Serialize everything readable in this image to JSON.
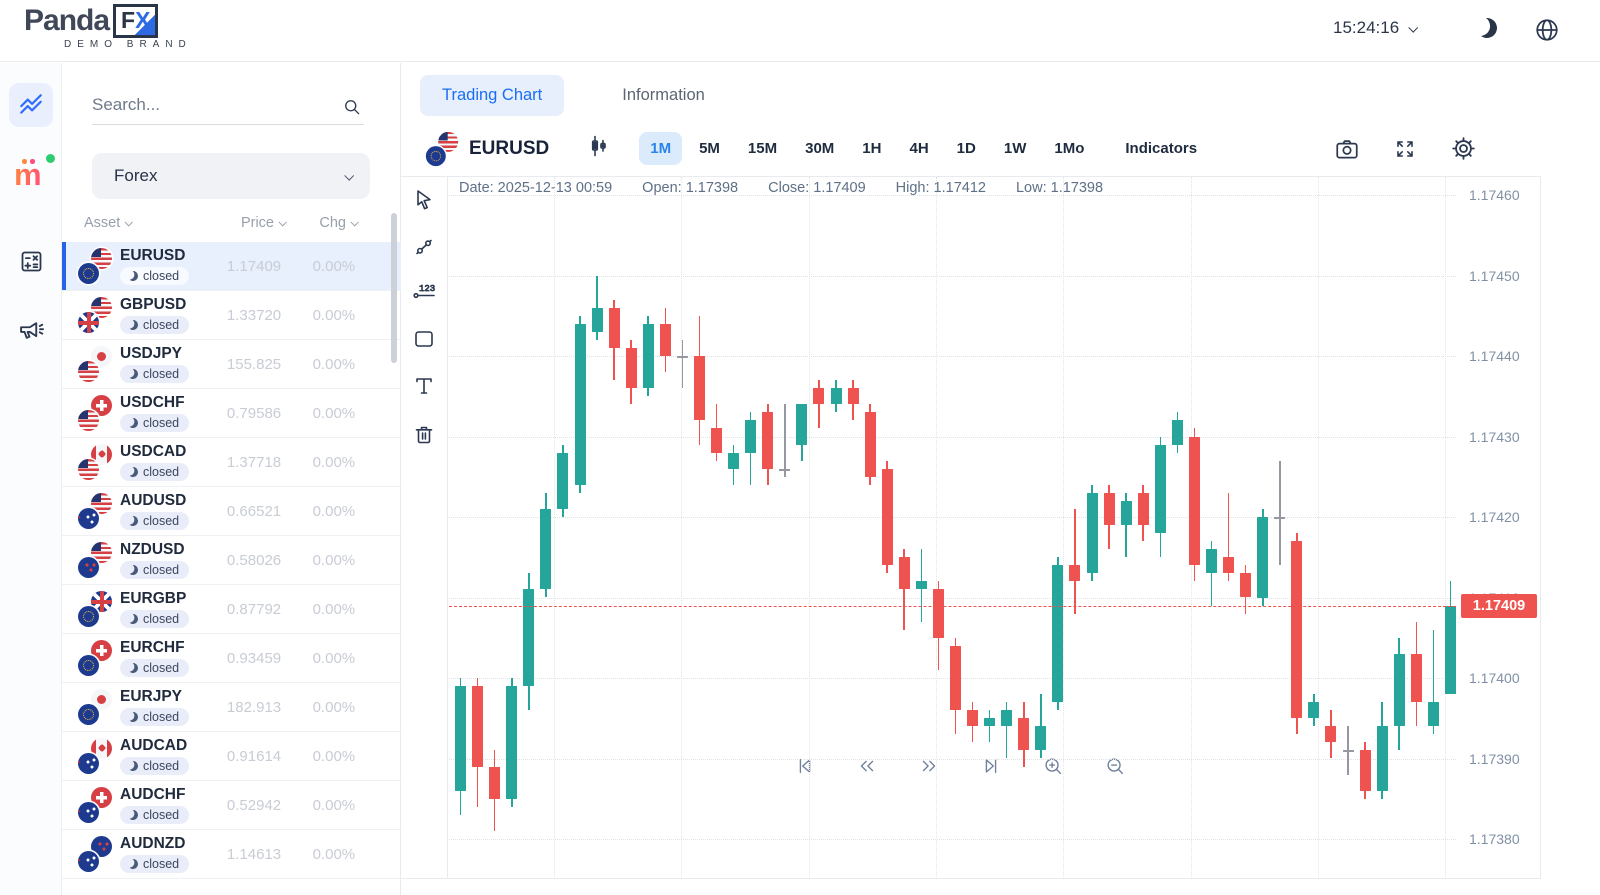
{
  "header": {
    "logo_main": "Panda",
    "logo_fx_f": "F",
    "logo_fx_x": "X",
    "logo_sub": "DEMO BRAND",
    "clock": "15:24:16",
    "icons": [
      "clock-dropdown-chevron",
      "moon-icon",
      "globe-icon"
    ]
  },
  "rail": {
    "items": [
      "markets-icon",
      "m-app-icon",
      "calculator-icon",
      "announcements-icon"
    ]
  },
  "watchlist": {
    "search_placeholder": "Search...",
    "search_icon": "search-icon",
    "category": "Forex",
    "columns": [
      "Asset",
      "Price",
      "Chg"
    ],
    "status_label": "closed",
    "rows": [
      {
        "symbol": "EURUSD",
        "base": "eur",
        "quote": "usd",
        "price": "1.17409",
        "chg": "0.00%",
        "status": "closed",
        "selected": true
      },
      {
        "symbol": "GBPUSD",
        "base": "gbp",
        "quote": "usd",
        "price": "1.33720",
        "chg": "0.00%",
        "status": "closed",
        "selected": false
      },
      {
        "symbol": "USDJPY",
        "base": "usd",
        "quote": "jpy",
        "price": "155.825",
        "chg": "0.00%",
        "status": "closed",
        "selected": false
      },
      {
        "symbol": "USDCHF",
        "base": "usd",
        "quote": "chf",
        "price": "0.79586",
        "chg": "0.00%",
        "status": "closed",
        "selected": false
      },
      {
        "symbol": "USDCAD",
        "base": "usd",
        "quote": "cad",
        "price": "1.37718",
        "chg": "0.00%",
        "status": "closed",
        "selected": false
      },
      {
        "symbol": "AUDUSD",
        "base": "aud",
        "quote": "usd",
        "price": "0.66521",
        "chg": "0.00%",
        "status": "closed",
        "selected": false
      },
      {
        "symbol": "NZDUSD",
        "base": "nzd",
        "quote": "usd",
        "price": "0.58026",
        "chg": "0.00%",
        "status": "closed",
        "selected": false
      },
      {
        "symbol": "EURGBP",
        "base": "eur",
        "quote": "gbp",
        "price": "0.87792",
        "chg": "0.00%",
        "status": "closed",
        "selected": false
      },
      {
        "symbol": "EURCHF",
        "base": "eur",
        "quote": "chf",
        "price": "0.93459",
        "chg": "0.00%",
        "status": "closed",
        "selected": false
      },
      {
        "symbol": "EURJPY",
        "base": "eur",
        "quote": "jpy",
        "price": "182.913",
        "chg": "0.00%",
        "status": "closed",
        "selected": false
      },
      {
        "symbol": "AUDCAD",
        "base": "aud",
        "quote": "cad",
        "price": "0.91614",
        "chg": "0.00%",
        "status": "closed",
        "selected": false
      },
      {
        "symbol": "AUDCHF",
        "base": "aud",
        "quote": "chf",
        "price": "0.52942",
        "chg": "0.00%",
        "status": "closed",
        "selected": false
      },
      {
        "symbol": "AUDNZD",
        "base": "aud",
        "quote": "nzd",
        "price": "1.14613",
        "chg": "0.00%",
        "status": "closed",
        "selected": false
      }
    ]
  },
  "tabs": [
    {
      "label": "Trading Chart",
      "active": true
    },
    {
      "label": "Information",
      "active": false
    }
  ],
  "toolbar": {
    "symbol": "EURUSD",
    "base": "eur",
    "quote": "usd",
    "chart_type_icon": "candlestick-chart-type-icon",
    "timeframes": [
      "1M",
      "5M",
      "15M",
      "30M",
      "1H",
      "4H",
      "1D",
      "1W",
      "1Mo"
    ],
    "active_timeframe": "1M",
    "indicators_label": "Indicators",
    "right_icons": [
      "camera-icon",
      "fullscreen-icon",
      "gear-icon"
    ]
  },
  "drawing_tools": [
    "cursor-tool",
    "trend-line-tool",
    "price-line-tool",
    "rectangle-tool",
    "text-tool",
    "delete-tool"
  ],
  "chart_data": {
    "type": "candlestick",
    "symbol": "EURUSD",
    "timeframe": "1M",
    "info": {
      "date_text": "Date: 2025-12-13 00:59",
      "open_text": "Open: 1.17398",
      "close_text": "Close: 1.17409",
      "high_text": "High: 1.17412",
      "low_text": "Low: 1.17398"
    },
    "y_ticks": [
      "1.17460",
      "1.17450",
      "1.17440",
      "1.17430",
      "1.17420",
      "1.17410",
      "1.17400",
      "1.17390",
      "1.17380"
    ],
    "y_range": [
      1.1738,
      1.1746
    ],
    "current_price": 1.17409,
    "current_price_label": "1.17409",
    "grid": true,
    "colors": {
      "up": "#26a69a",
      "down": "#ef5350",
      "doji": "#9598a1",
      "price_line": "#ef5350",
      "accent": "#1a6ef5"
    },
    "nav_controls": [
      "skip-to-start-icon",
      "step-back-icon",
      "step-forward-icon",
      "skip-to-end-icon",
      "zoom-in-icon",
      "zoom-out-icon"
    ],
    "candles_ohlc": [
      [
        1.17386,
        1.174,
        1.17383,
        1.17399
      ],
      [
        1.17399,
        1.174,
        1.17384,
        1.17389
      ],
      [
        1.17389,
        1.17391,
        1.17381,
        1.17385
      ],
      [
        1.17385,
        1.174,
        1.17384,
        1.17399
      ],
      [
        1.17399,
        1.17413,
        1.17396,
        1.17411
      ],
      [
        1.17411,
        1.17423,
        1.1741,
        1.17421
      ],
      [
        1.17421,
        1.17429,
        1.1742,
        1.17428
      ],
      [
        1.17424,
        1.17445,
        1.17423,
        1.17444
      ],
      [
        1.17443,
        1.1745,
        1.17442,
        1.17446
      ],
      [
        1.17446,
        1.17447,
        1.17437,
        1.17441
      ],
      [
        1.17441,
        1.17442,
        1.17434,
        1.17436
      ],
      [
        1.17436,
        1.17445,
        1.17435,
        1.17444
      ],
      [
        1.17444,
        1.17446,
        1.17438,
        1.1744
      ],
      [
        1.1744,
        1.17442,
        1.17436,
        1.1744
      ],
      [
        1.1744,
        1.17445,
        1.17429,
        1.17432
      ],
      [
        1.17431,
        1.17434,
        1.17427,
        1.17428
      ],
      [
        1.17426,
        1.17429,
        1.17424,
        1.17428
      ],
      [
        1.17428,
        1.17433,
        1.17424,
        1.17432
      ],
      [
        1.17433,
        1.17434,
        1.17424,
        1.17426
      ],
      [
        1.17426,
        1.17434,
        1.17425,
        1.17426
      ],
      [
        1.17429,
        1.17434,
        1.17427,
        1.17434
      ],
      [
        1.17436,
        1.17437,
        1.17431,
        1.17434
      ],
      [
        1.17434,
        1.17437,
        1.17433,
        1.17436
      ],
      [
        1.17436,
        1.17437,
        1.17432,
        1.17434
      ],
      [
        1.17433,
        1.17434,
        1.17424,
        1.17425
      ],
      [
        1.17426,
        1.17427,
        1.17413,
        1.17414
      ],
      [
        1.17415,
        1.17416,
        1.17406,
        1.17411
      ],
      [
        1.17411,
        1.17416,
        1.17407,
        1.17412
      ],
      [
        1.17411,
        1.17412,
        1.17401,
        1.17405
      ],
      [
        1.17404,
        1.17405,
        1.17393,
        1.17396
      ],
      [
        1.17396,
        1.17397,
        1.17392,
        1.17394
      ],
      [
        1.17394,
        1.17396,
        1.17392,
        1.17395
      ],
      [
        1.17394,
        1.17397,
        1.1739,
        1.17396
      ],
      [
        1.17395,
        1.17397,
        1.17389,
        1.17391
      ],
      [
        1.17391,
        1.17398,
        1.1739,
        1.17394
      ],
      [
        1.17397,
        1.17415,
        1.17396,
        1.17414
      ],
      [
        1.17414,
        1.17421,
        1.17408,
        1.17412
      ],
      [
        1.17413,
        1.17424,
        1.17412,
        1.17423
      ],
      [
        1.17423,
        1.17424,
        1.17416,
        1.17419
      ],
      [
        1.17419,
        1.17423,
        1.17415,
        1.17422
      ],
      [
        1.17423,
        1.17424,
        1.17417,
        1.17419
      ],
      [
        1.17418,
        1.1743,
        1.17415,
        1.17429
      ],
      [
        1.17429,
        1.17433,
        1.17428,
        1.17432
      ],
      [
        1.1743,
        1.17431,
        1.17412,
        1.17414
      ],
      [
        1.17413,
        1.17417,
        1.17409,
        1.17416
      ],
      [
        1.17415,
        1.17423,
        1.17412,
        1.17413
      ],
      [
        1.17413,
        1.17414,
        1.17408,
        1.1741
      ],
      [
        1.1741,
        1.17421,
        1.17409,
        1.1742
      ],
      [
        1.1742,
        1.17427,
        1.17414,
        1.1742
      ],
      [
        1.17417,
        1.17418,
        1.17393,
        1.17395
      ],
      [
        1.17395,
        1.17398,
        1.17394,
        1.17397
      ],
      [
        1.17394,
        1.17396,
        1.1739,
        1.17392
      ],
      [
        1.17391,
        1.17394,
        1.17388,
        1.17391
      ],
      [
        1.17391,
        1.17392,
        1.17385,
        1.17386
      ],
      [
        1.17386,
        1.17397,
        1.17385,
        1.17394
      ],
      [
        1.17394,
        1.17405,
        1.17391,
        1.17403
      ],
      [
        1.17403,
        1.17407,
        1.17394,
        1.17397
      ],
      [
        1.17394,
        1.17406,
        1.17393,
        1.17397
      ],
      [
        1.17398,
        1.17412,
        1.17398,
        1.17409
      ]
    ]
  }
}
